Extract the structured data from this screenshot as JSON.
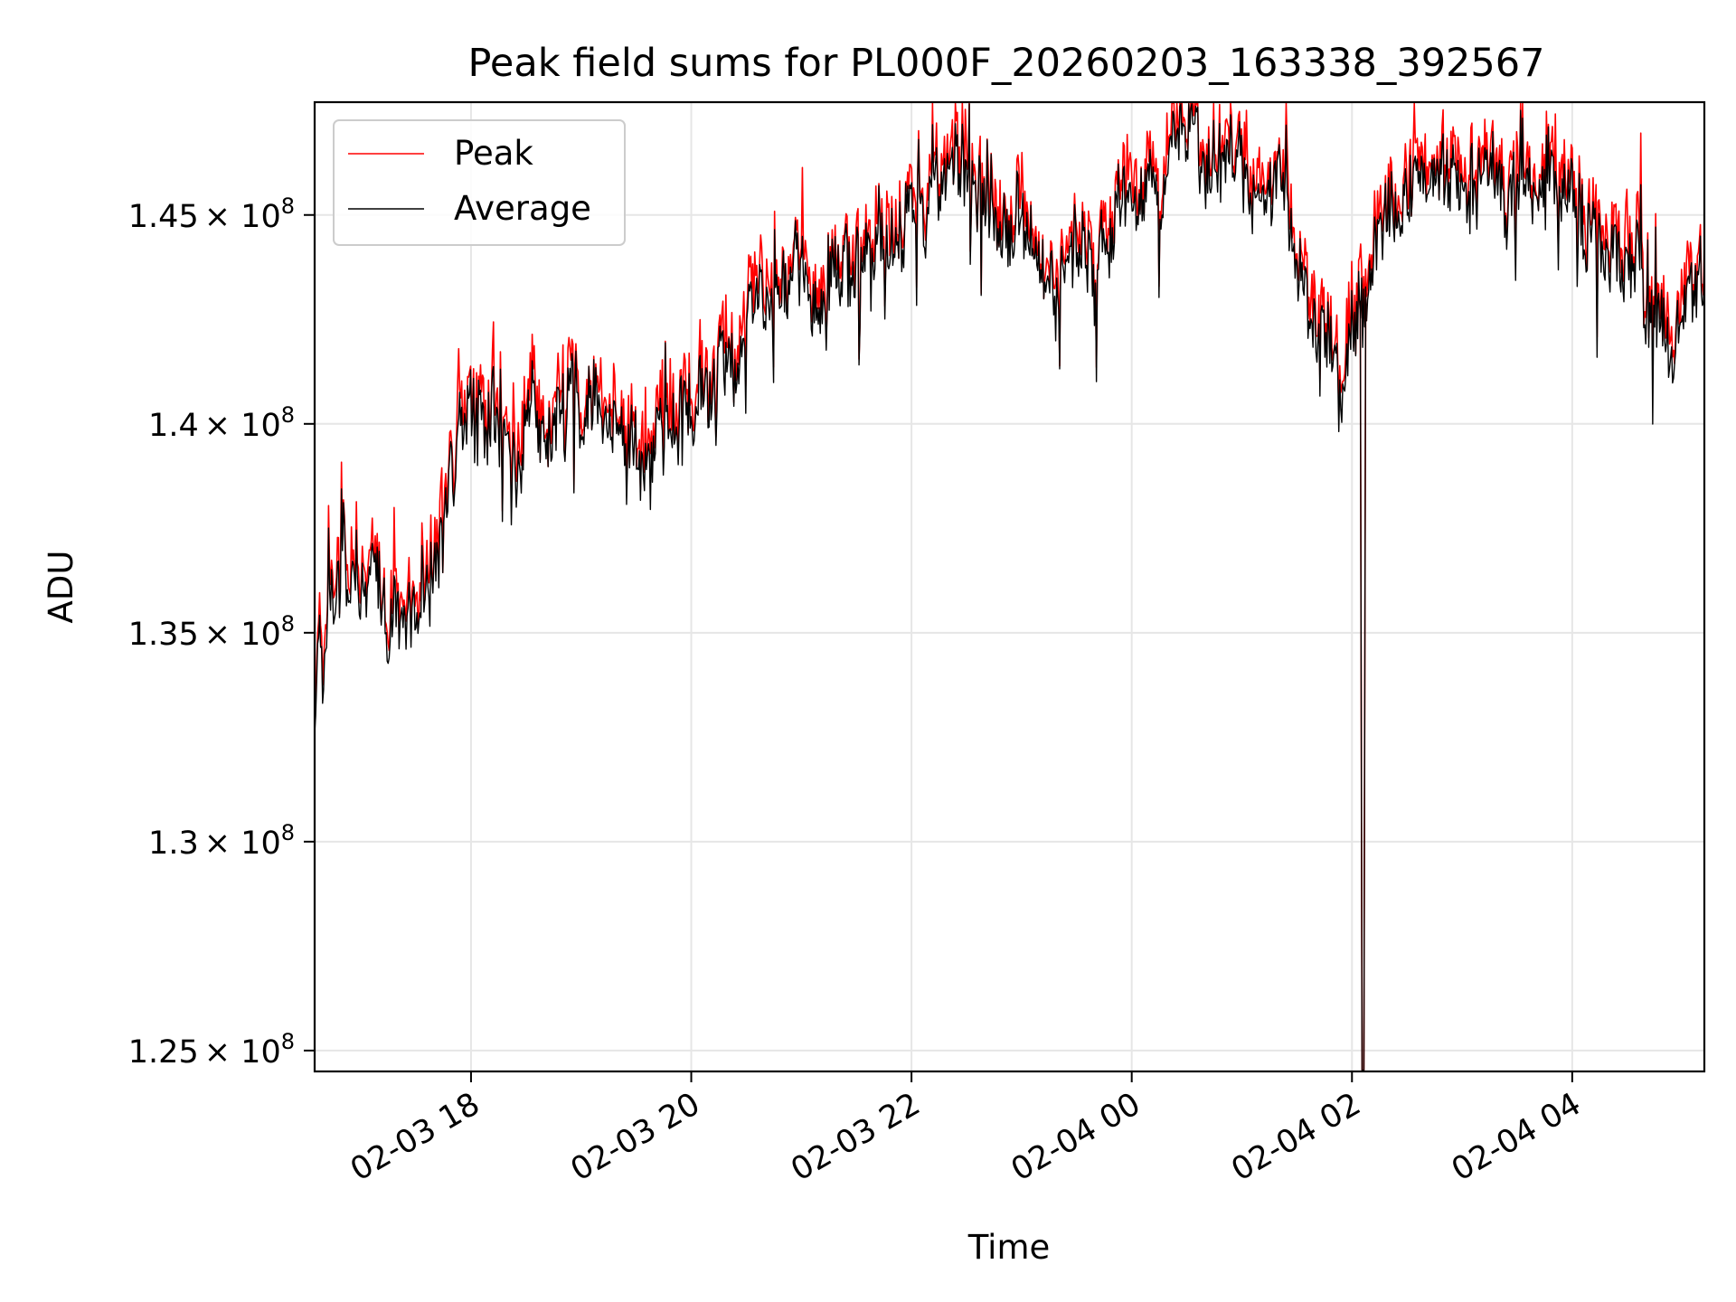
{
  "chart_data": {
    "type": "line",
    "title": "Peak field sums for PL000F_20260203_163338_392567",
    "xlabel": "Time",
    "ylabel": "ADU",
    "xlim_hours": [
      16.58,
      5.2
    ],
    "ylim": [
      124500000,
      147700000
    ],
    "grid": true,
    "legend_position": "upper-left",
    "x_ticks": [
      {
        "label": "02-03 18",
        "hours_since_start": 1.42
      },
      {
        "label": "02-03 20",
        "hours_since_start": 3.42
      },
      {
        "label": "02-03 22",
        "hours_since_start": 5.42
      },
      {
        "label": "02-04 00",
        "hours_since_start": 7.42
      },
      {
        "label": "02-04 02",
        "hours_since_start": 9.42
      },
      {
        "label": "02-04 04",
        "hours_since_start": 11.42
      }
    ],
    "y_ticks": [
      {
        "value": 125000000,
        "mantissa": "1.25",
        "base": "× 10",
        "exp": "8"
      },
      {
        "value": 130000000,
        "mantissa": "1.3",
        "base": "× 10",
        "exp": "8"
      },
      {
        "value": 135000000,
        "mantissa": "1.35",
        "base": "× 10",
        "exp": "8"
      },
      {
        "value": 140000000,
        "mantissa": "1.4",
        "base": "× 10",
        "exp": "8"
      },
      {
        "value": 145000000,
        "mantissa": "1.45",
        "base": "× 10",
        "exp": "8"
      }
    ],
    "hours_span": 12.62,
    "trend_hours": [
      0.0,
      0.15,
      0.4,
      0.7,
      1.0,
      1.2,
      1.5,
      1.8,
      2.2,
      2.6,
      3.0,
      3.3,
      3.6,
      4.0,
      4.5,
      5.0,
      5.5,
      5.9,
      6.3,
      6.8,
      7.2,
      7.6,
      8.0,
      8.4,
      8.8,
      9.1,
      9.35,
      9.5,
      9.7,
      10.0,
      10.4,
      10.8,
      11.2,
      11.6,
      12.0,
      12.3,
      12.62
    ],
    "trend_values": [
      133000000,
      136000000,
      136600000,
      135800000,
      136000000,
      138500000,
      140600000,
      139000000,
      139800000,
      140300000,
      139500000,
      139700000,
      140500000,
      142800000,
      143200000,
      143900000,
      145000000,
      146000000,
      144800000,
      143800000,
      144600000,
      146000000,
      146800000,
      145900000,
      144800000,
      142700000,
      141200000,
      142800000,
      144300000,
      145600000,
      146600000,
      145600000,
      145300000,
      144800000,
      143600000,
      142000000,
      144000000
    ],
    "dip_event": {
      "hours_since_start": 9.52,
      "min_value": 124500000
    },
    "series": [
      {
        "name": "Peak",
        "color": "#ff0000",
        "points": 1400
      },
      {
        "name": "Average",
        "color": "#000000",
        "points": 1400
      }
    ],
    "legend": [
      {
        "label": "Peak",
        "color": "#ff0000"
      },
      {
        "label": "Average",
        "color": "#000000"
      }
    ]
  }
}
